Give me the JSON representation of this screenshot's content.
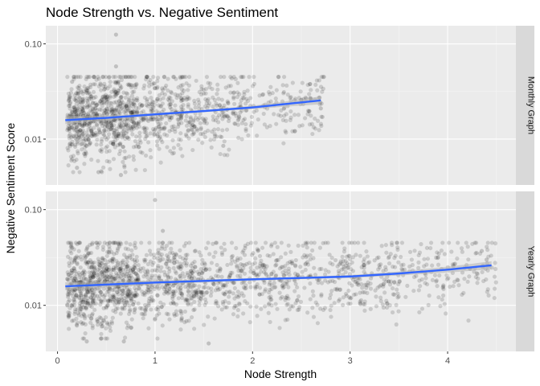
{
  "chart_data": {
    "type": "scatter",
    "title": "Node Strength vs. Negative Sentiment",
    "xlabel": "Node Strength",
    "ylabel": "Negative Sentiment Score",
    "x_ticks": [
      0,
      1,
      2,
      3,
      4
    ],
    "y_ticks": [
      0.01,
      0.1
    ],
    "y_tick_labels": [
      "0.01",
      "0.10"
    ],
    "xlim": [
      -0.12,
      4.7
    ],
    "ylim": [
      0.0033,
      0.155
    ],
    "y_scale": "log10",
    "grid": true,
    "point_color": "#000000",
    "point_alpha": 0.14,
    "trend_color": "#3366ff",
    "ribbon_color": "#b3b3b3",
    "panel_background": "#ebebeb",
    "strip_background": "#d9d9d9",
    "facets": [
      {
        "label": "Monthly Graph",
        "point_count": 1300,
        "x_density": [
          [
            0.1,
            0.35,
            280
          ],
          [
            0.35,
            0.8,
            420
          ],
          [
            0.8,
            1.3,
            260
          ],
          [
            1.3,
            2.0,
            220
          ],
          [
            2.0,
            2.75,
            120
          ]
        ],
        "trend": [
          {
            "x": 0.08,
            "y": 0.0158
          },
          {
            "x": 0.5,
            "y": 0.0167
          },
          {
            "x": 1.0,
            "y": 0.0182
          },
          {
            "x": 1.5,
            "y": 0.0197
          },
          {
            "x": 2.0,
            "y": 0.0215
          },
          {
            "x": 2.7,
            "y": 0.0255
          }
        ],
        "outliers": [
          {
            "x": 0.6,
            "y": 0.125
          },
          {
            "x": 0.6,
            "y": 0.058
          },
          {
            "x": 0.15,
            "y": 0.04
          },
          {
            "x": 0.2,
            "y": 0.005
          },
          {
            "x": 0.42,
            "y": 0.0045
          },
          {
            "x": 0.65,
            "y": 0.0042
          },
          {
            "x": 1.7,
            "y": 0.0085
          },
          {
            "x": 2.7,
            "y": 0.021
          },
          {
            "x": 2.6,
            "y": 0.026
          }
        ]
      },
      {
        "label": "Yearly Graph",
        "point_count": 1800,
        "x_density": [
          [
            0.1,
            0.35,
            260
          ],
          [
            0.35,
            0.8,
            420
          ],
          [
            0.8,
            1.5,
            380
          ],
          [
            1.5,
            2.5,
            330
          ],
          [
            2.5,
            3.5,
            260
          ],
          [
            3.5,
            4.5,
            150
          ]
        ],
        "trend": [
          {
            "x": 0.08,
            "y": 0.0158
          },
          {
            "x": 1.0,
            "y": 0.0173
          },
          {
            "x": 2.0,
            "y": 0.0187
          },
          {
            "x": 3.0,
            "y": 0.02
          },
          {
            "x": 3.5,
            "y": 0.0215
          },
          {
            "x": 4.0,
            "y": 0.0236
          },
          {
            "x": 4.45,
            "y": 0.0262
          }
        ],
        "outliers": [
          {
            "x": 1.0,
            "y": 0.126
          },
          {
            "x": 1.08,
            "y": 0.06
          },
          {
            "x": 0.15,
            "y": 0.04
          },
          {
            "x": 0.3,
            "y": 0.0042
          },
          {
            "x": 0.45,
            "y": 0.0045
          },
          {
            "x": 0.68,
            "y": 0.0042
          },
          {
            "x": 1.55,
            "y": 0.004
          },
          {
            "x": 4.35,
            "y": 0.037
          },
          {
            "x": 4.4,
            "y": 0.03
          }
        ]
      }
    ]
  }
}
